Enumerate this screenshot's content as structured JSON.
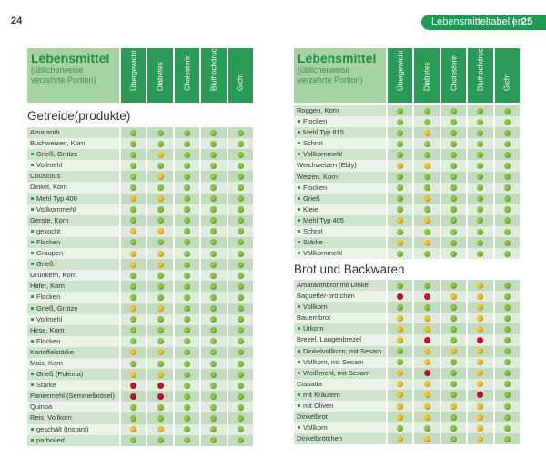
{
  "colors": {
    "g": "#8cc63f",
    "y": "#f2c12e",
    "r": "#c8102e"
  },
  "page_left": {
    "number": "24"
  },
  "page_right": {
    "number": "25",
    "running_title": "Lebensmitteltabellen"
  },
  "header": {
    "title": "Lebensmittel",
    "subtitle1": "(üblicherweise",
    "subtitle2": "verzehrte Portion)",
    "columns": [
      "Übergewicht",
      "Diabetes",
      "Cholesterin",
      "Bluthochdruck",
      "Gicht"
    ]
  },
  "sections": [
    {
      "title": "Getreide(produkte)",
      "rows": [
        {
          "name": "Amaranth",
          "sub": false,
          "r": "ggggg"
        },
        {
          "name": "Buchweizen, Korn",
          "sub": false,
          "r": "ggggg"
        },
        {
          "name": "Grieß, Grütze",
          "sub": true,
          "r": "gyggg"
        },
        {
          "name": "Vollmehl",
          "sub": true,
          "r": "ggggg"
        },
        {
          "name": "Couscous",
          "sub": false,
          "r": "gyggg"
        },
        {
          "name": "Dinkel, Korn",
          "sub": false,
          "r": "ggggg"
        },
        {
          "name": "Mehl Typ 400",
          "sub": true,
          "r": "yyggg"
        },
        {
          "name": "Vollkornmehl",
          "sub": true,
          "r": "ggggg"
        },
        {
          "name": "Gerste, Korn",
          "sub": false,
          "r": "ggggg"
        },
        {
          "name": "gekocht",
          "sub": true,
          "r": "yyggg"
        },
        {
          "name": "Flocken",
          "sub": true,
          "r": "ggggg"
        },
        {
          "name": "Graupen",
          "sub": true,
          "r": "yyggg"
        },
        {
          "name": "Grieß",
          "sub": true,
          "r": "yyggg"
        },
        {
          "name": "Grünkern, Korn",
          "sub": false,
          "r": "ggggg"
        },
        {
          "name": "Hafer, Korn",
          "sub": false,
          "r": "ggggg"
        },
        {
          "name": "Flocken",
          "sub": true,
          "r": "ggggg"
        },
        {
          "name": "Grieß, Grütze",
          "sub": true,
          "r": "yyggg"
        },
        {
          "name": "Vollmehl",
          "sub": true,
          "r": "ggggg"
        },
        {
          "name": "Hirse, Korn",
          "sub": false,
          "r": "ggggg"
        },
        {
          "name": "Flocken",
          "sub": true,
          "r": "ggggg"
        },
        {
          "name": "Kartoffelstärke",
          "sub": false,
          "r": "yyggg"
        },
        {
          "name": "Mais, Korn",
          "sub": false,
          "r": "ggggg"
        },
        {
          "name": "Grieß (Polenta)",
          "sub": true,
          "r": "yyggg"
        },
        {
          "name": "Stärke",
          "sub": true,
          "r": "rrggg"
        },
        {
          "name": "Paniermehl (Semmelbrösel)",
          "sub": false,
          "r": "rrggg"
        },
        {
          "name": "Quinoa",
          "sub": false,
          "r": "ggggg"
        },
        {
          "name": "Reis, Vollkorn",
          "sub": false,
          "r": "ggggg"
        },
        {
          "name": "geschält (Instant)",
          "sub": true,
          "r": "yyggg"
        },
        {
          "name": "parboiled",
          "sub": true,
          "r": "ggggg"
        }
      ]
    },
    {
      "title": "",
      "rows": [
        {
          "name": "Roggen, Korn",
          "sub": false,
          "r": "ggggg"
        },
        {
          "name": "Flocken",
          "sub": true,
          "r": "ggggg"
        },
        {
          "name": "Mehl Typ 815",
          "sub": true,
          "r": "gyggg"
        },
        {
          "name": "Schrot",
          "sub": true,
          "r": "ggggg"
        },
        {
          "name": "Vollkornmehl",
          "sub": true,
          "r": "ggggg"
        },
        {
          "name": "Weichweizen (Ebly)",
          "sub": false,
          "r": "yyggg"
        },
        {
          "name": "Weizen, Korn",
          "sub": false,
          "r": "ggggg"
        },
        {
          "name": "Flocken",
          "sub": true,
          "r": "ggggg"
        },
        {
          "name": "Grieß",
          "sub": true,
          "r": "gyggg"
        },
        {
          "name": "Kleie",
          "sub": true,
          "r": "ggggg"
        },
        {
          "name": "Mehl Typ 405",
          "sub": true,
          "r": "yyggg"
        },
        {
          "name": "Schrot",
          "sub": true,
          "r": "ggggg"
        },
        {
          "name": "Stärke",
          "sub": true,
          "r": "yyggg"
        },
        {
          "name": "Vollkornmehl",
          "sub": true,
          "r": "ggggg"
        }
      ]
    },
    {
      "title": "Brot und Backwaren",
      "rows": [
        {
          "name": "Amaranthbrot mit Dinkel",
          "sub": false,
          "r": "gggyg"
        },
        {
          "name": "Baguette/-brötchen",
          "sub": false,
          "r": "rryyg"
        },
        {
          "name": "Vollkorn",
          "sub": true,
          "r": "gggyg"
        },
        {
          "name": "Bauernbrot",
          "sub": false,
          "r": "yygyg"
        },
        {
          "name": "Urkorn",
          "sub": true,
          "r": "yygyg"
        },
        {
          "name": "Brezel, Laugenbrezel",
          "sub": false,
          "r": "yrgrg"
        },
        {
          "name": "Dinkelvollkorn, mit Sesam",
          "sub": true,
          "r": "gyyyg"
        },
        {
          "name": "Vollkorn, mit Sesam",
          "sub": true,
          "r": "gygyg"
        },
        {
          "name": "Weißmehl, mit Sesam",
          "sub": true,
          "r": "yrgyg"
        },
        {
          "name": "Ciabatta",
          "sub": false,
          "r": "yygyg"
        },
        {
          "name": "mit Kräutern",
          "sub": true,
          "r": "yygrg"
        },
        {
          "name": "mit Oliven",
          "sub": true,
          "r": "yyyyg"
        },
        {
          "name": "Dinkelbrot",
          "sub": false,
          "r": "yygyg"
        },
        {
          "name": "Vollkorn",
          "sub": true,
          "r": "gggyg"
        },
        {
          "name": "Dinkelbrötchen",
          "sub": false,
          "r": "yygyg"
        }
      ]
    }
  ]
}
